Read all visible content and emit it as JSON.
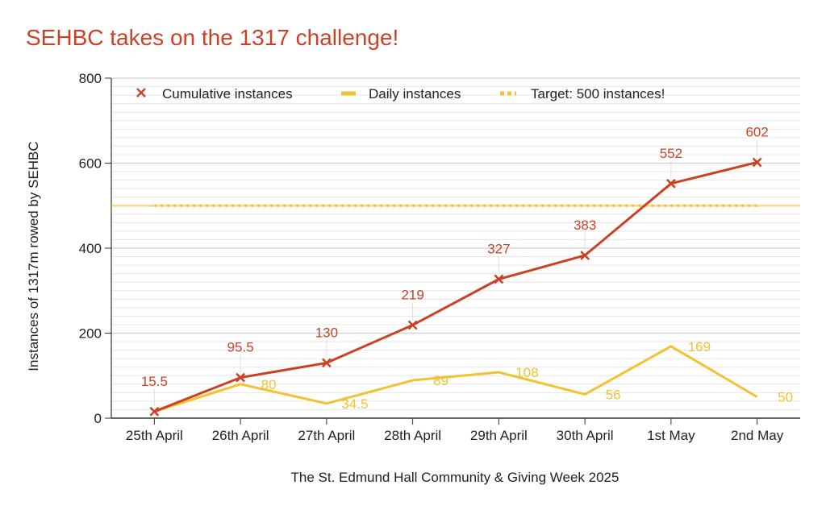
{
  "chart_data": {
    "type": "line",
    "title": "SEHBC takes on the 1317 challenge!",
    "xlabel": "The St. Edmund Hall Community & Giving Week 2025",
    "ylabel": "Instances of 1317m rowed by SEHBC",
    "categories": [
      "25th April",
      "26th April",
      "27th April",
      "28th April",
      "29th April",
      "30th April",
      "1st May",
      "2nd May"
    ],
    "ylim": [
      0,
      800
    ],
    "yticks": [
      0,
      200,
      400,
      600,
      800
    ],
    "grid": true,
    "legend_position": "top-left",
    "series": [
      {
        "name": "Cumulative instances",
        "color": "#cc4125",
        "marker": "x",
        "values": [
          15.5,
          95.5,
          130,
          219,
          327,
          383,
          552,
          602
        ],
        "labels": [
          "15.5",
          "95.5",
          "130",
          "219",
          "327",
          "383",
          "552",
          "602"
        ]
      },
      {
        "name": "Daily instances",
        "color": "#f1c232",
        "values": [
          15.5,
          80,
          34.5,
          89,
          108,
          56,
          169,
          50
        ],
        "labels": [
          "",
          "80",
          "34.5",
          "89",
          "108",
          "56",
          "169",
          "50"
        ]
      },
      {
        "name": "Target: 500 instances!",
        "color": "#f1c232",
        "style": "dotted",
        "value": 500
      }
    ]
  }
}
